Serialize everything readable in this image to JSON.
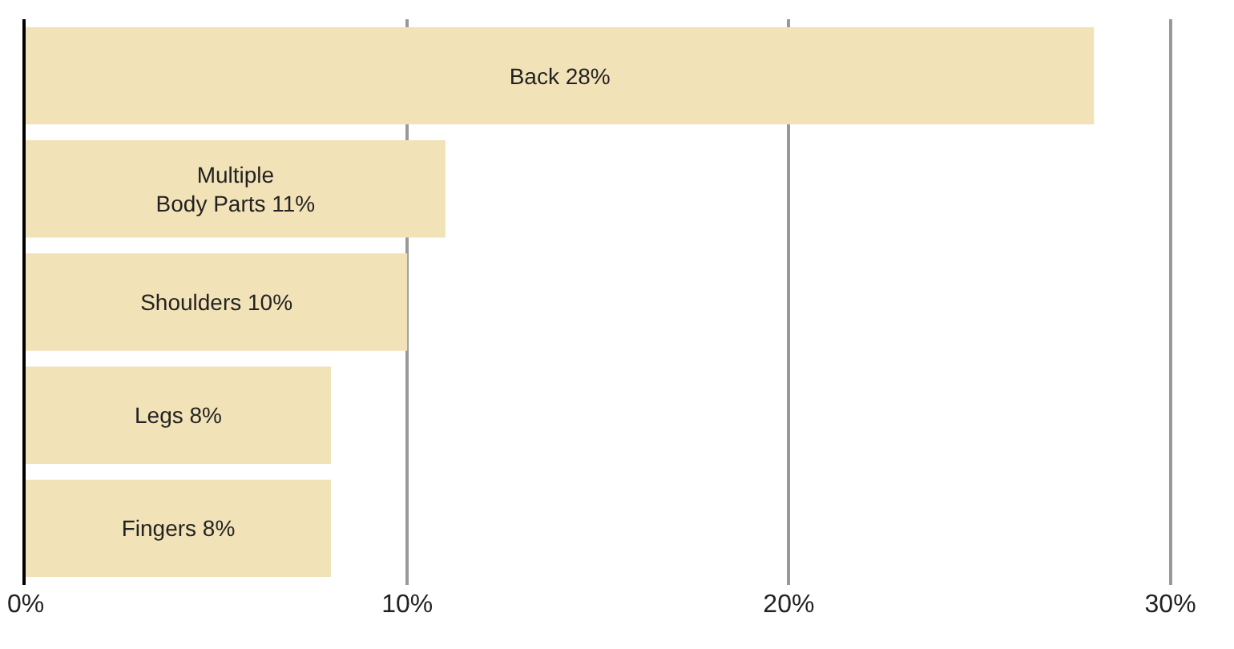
{
  "chart_data": {
    "type": "bar",
    "orientation": "horizontal",
    "categories": [
      null,
      null,
      null,
      null,
      null
    ],
    "values": [
      28,
      11,
      10,
      8,
      8
    ],
    "color": "#f2e2b8",
    "value_labels": [
      "Back 28%",
      "Multiple Body Parts 11%",
      "Shoulders 10%",
      "Legs 8%",
      "Fingers 8%"
    ],
    "xlim": [
      0,
      31.5
    ],
    "xticks": [
      {
        "value": 0,
        "label": "0%"
      },
      {
        "value": 10,
        "label": "10%"
      },
      {
        "value": 20,
        "label": "20%"
      },
      {
        "value": 30,
        "label": "30%"
      }
    ],
    "grid": "x",
    "tick_labels": "x",
    "legend": false
  }
}
